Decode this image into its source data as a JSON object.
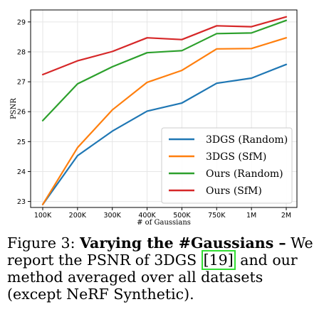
{
  "chart_data": {
    "type": "line",
    "categories": [
      "100K",
      "200K",
      "300K",
      "400K",
      "500K",
      "750K",
      "1M",
      "2M"
    ],
    "xlabel": "# of Gaussians",
    "ylabel": "PSNR",
    "ylim": [
      22.8,
      29.4
    ],
    "yticks": [
      23,
      24,
      25,
      26,
      27,
      28,
      29
    ],
    "grid": true,
    "legend_position": "lower-right",
    "series": [
      {
        "name": "3DGS (Random)",
        "color": "#1f77b4",
        "values": [
          22.9,
          24.53,
          25.35,
          26.02,
          26.29,
          26.95,
          27.12,
          27.58
        ]
      },
      {
        "name": "3DGS (SfM)",
        "color": "#ff7f0e",
        "values": [
          22.9,
          24.8,
          26.06,
          26.98,
          27.38,
          28.1,
          28.11,
          28.47
        ]
      },
      {
        "name": "Ours (Random)",
        "color": "#2ca02c",
        "values": [
          25.7,
          26.93,
          27.5,
          27.97,
          28.04,
          28.61,
          28.63,
          29.05
        ]
      },
      {
        "name": "Ours (SfM)",
        "color": "#d62728",
        "values": [
          27.24,
          27.7,
          28.01,
          28.47,
          28.41,
          28.87,
          28.84,
          29.17
        ]
      }
    ]
  },
  "caption": {
    "prefix": "Figure 3: ",
    "bold": "Varying the #Gaussians –",
    "text1": " We report the PSNR of 3DGS ",
    "cite": "[19]",
    "text2": " and our method averaged over all datasets (except NeRF Synthetic)."
  }
}
